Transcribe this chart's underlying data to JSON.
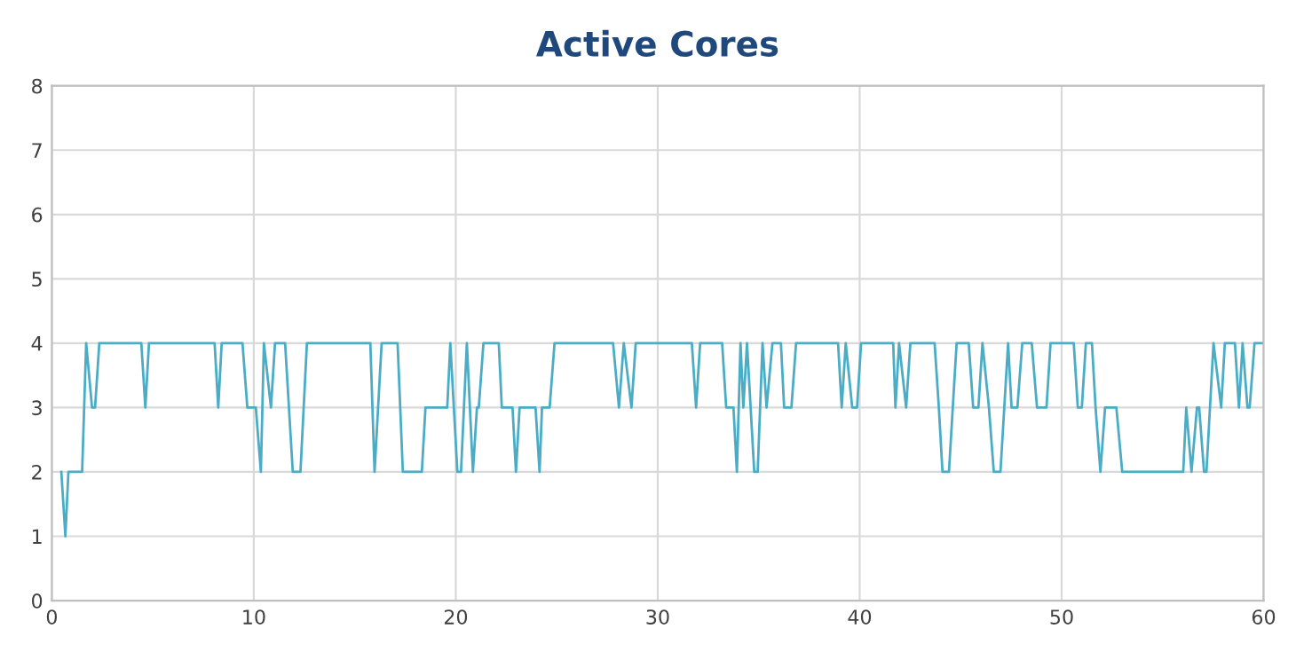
{
  "chart_data": {
    "type": "line",
    "title": "Active Cores",
    "color": "#4bacc6",
    "x": [
      0.47,
      0.67,
      0.82,
      1.5,
      1.7,
      1.99,
      2.14,
      2.35,
      4.43,
      4.63,
      4.81,
      8.06,
      8.24,
      8.41,
      9.44,
      9.68,
      10.1,
      10.35,
      10.5,
      10.85,
      11.05,
      11.55,
      11.93,
      12.31,
      12.63,
      15.77,
      15.98,
      16.33,
      17.12,
      17.38,
      18.32,
      18.5,
      19.58,
      19.73,
      20.08,
      20.26,
      20.55,
      20.85,
      21.05,
      21.14,
      21.37,
      22.13,
      22.28,
      22.81,
      22.98,
      23.16,
      23.95,
      24.15,
      24.27,
      24.65,
      24.89,
      27.79,
      28.08,
      28.32,
      28.7,
      28.91,
      31.69,
      31.9,
      32.1,
      33.19,
      33.39,
      33.75,
      33.92,
      34.1,
      34.24,
      34.42,
      34.78,
      34.95,
      35.19,
      35.39,
      35.68,
      36.1,
      36.26,
      36.62,
      36.85,
      38.93,
      39.11,
      39.31,
      39.63,
      39.87,
      40.07,
      41.66,
      41.77,
      41.95,
      42.3,
      42.51,
      43.71,
      43.92,
      44.1,
      44.42,
      44.8,
      45.4,
      45.62,
      45.88,
      46.08,
      46.4,
      46.64,
      46.97,
      47.35,
      47.52,
      47.81,
      48.05,
      48.52,
      48.78,
      49.25,
      49.45,
      50.6,
      50.8,
      51.0,
      51.2,
      51.5,
      51.68,
      51.92,
      52.15,
      52.71,
      53.0,
      56.02,
      56.17,
      56.43,
      56.7,
      56.81,
      57.05,
      57.17,
      57.52,
      57.9,
      58.08,
      58.58,
      58.78,
      58.96,
      59.2,
      59.31,
      59.55,
      59.98
    ],
    "values": [
      2,
      1,
      2,
      2,
      4,
      3,
      3,
      4,
      4,
      3,
      4,
      4,
      3,
      4,
      4,
      3,
      3,
      2,
      4,
      3,
      4,
      4,
      2,
      2,
      4,
      4,
      2,
      4,
      4,
      2,
      2,
      3,
      3,
      4,
      2,
      2,
      4,
      2,
      3,
      3,
      4,
      4,
      3,
      3,
      2,
      3,
      3,
      2,
      3,
      3,
      4,
      4,
      3,
      4,
      3,
      4,
      4,
      3,
      4,
      4,
      3,
      3,
      2,
      4,
      3,
      4,
      2,
      2,
      4,
      3,
      4,
      4,
      3,
      3,
      4,
      4,
      3,
      4,
      3,
      3,
      4,
      4,
      3,
      4,
      3,
      4,
      4,
      3,
      2,
      2,
      4,
      4,
      3,
      3,
      4,
      3,
      2,
      2,
      4,
      3,
      3,
      4,
      4,
      3,
      3,
      4,
      4,
      3,
      3,
      4,
      4,
      3,
      2,
      3,
      3,
      2,
      2,
      3,
      2,
      3,
      3,
      2,
      2,
      4,
      3,
      4,
      4,
      3,
      4,
      3,
      3,
      4,
      4
    ],
    "xlim": [
      0,
      60
    ],
    "xticks": [
      0,
      10,
      20,
      30,
      40,
      50,
      60
    ],
    "ylim": [
      0,
      8
    ],
    "yticks": [
      0,
      1,
      2,
      3,
      4,
      5,
      6,
      7,
      8
    ],
    "grid": true
  }
}
